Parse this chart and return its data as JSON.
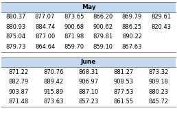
{
  "may_header": "May",
  "june_header": "June",
  "may_rows": [
    [
      "880.37",
      "877.07",
      "873.65",
      "866.20",
      "869.79",
      "829.61"
    ],
    [
      "880.93",
      "884.74",
      "900.68",
      "900.62",
      "886.25",
      "820.43"
    ],
    [
      "875.04",
      "877.00",
      "871.98",
      "879.81",
      "890.22",
      ""
    ],
    [
      "879.73",
      "864.64",
      "859.70",
      "859.10",
      "867.63",
      ""
    ]
  ],
  "june_rows": [
    [
      "871.22",
      "870.76",
      "868.31",
      "881.27",
      "873.32"
    ],
    [
      "882.79",
      "889.42",
      "906.97",
      "908.53",
      "909.18"
    ],
    [
      "903.87",
      "915.89",
      "887.10",
      "877.53",
      "880.23"
    ],
    [
      "871.48",
      "873.63",
      "857.23",
      "861.55",
      "845.72"
    ]
  ],
  "header_bg": "#c5d9f1",
  "header_text_color": "#000000",
  "border_color": "#888888",
  "font_size": 6.0,
  "header_font_size": 6.5,
  "fig_width": 2.58,
  "fig_height": 1.71,
  "dpi": 100
}
